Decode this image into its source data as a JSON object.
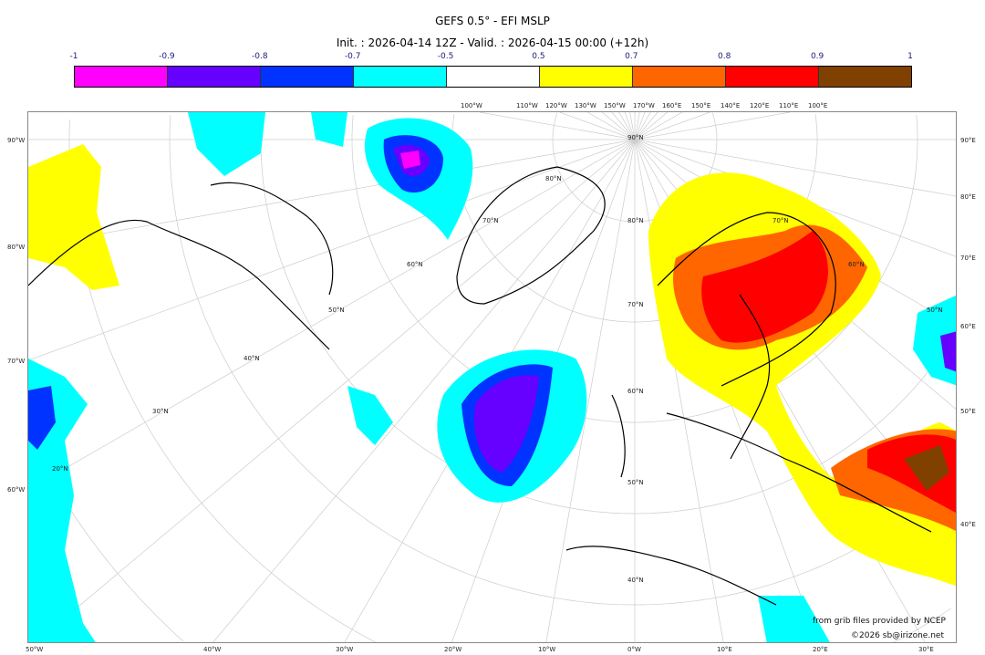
{
  "title": "GEFS 0.5° - EFI MSLP",
  "subtitle": "Init. : 2026-04-14 12Z - Valid. : 2026-04-15 00:00 (+12h)",
  "colorbar": {
    "ticks": [
      "-1",
      "-0.9",
      "-0.8",
      "-0.7",
      "-0.5",
      "0.5",
      "0.7",
      "0.8",
      "0.9",
      "1"
    ],
    "colors": [
      "#ff00ff",
      "#6600ff",
      "#0033ff",
      "#00ffff",
      "#ffffff",
      "#ffff00",
      "#ff6600",
      "#ff0000",
      "#804000"
    ]
  },
  "axes": {
    "bottom": [
      "50°W",
      "40°W",
      "30°W",
      "20°W",
      "10°W",
      "0°W",
      "10°E",
      "20°E",
      "30°E"
    ],
    "left": [
      "90°W",
      "80°W",
      "70°W",
      "60°W"
    ],
    "right": [
      "90°E",
      "80°E",
      "70°E",
      "60°E",
      "50°E",
      "40°E"
    ],
    "top": [
      "100°W",
      "110°W",
      "120°W",
      "130°W",
      "150°W",
      "170°W",
      "160°E",
      "150°E",
      "140°E",
      "120°E",
      "110°E",
      "100°E"
    ],
    "lat": [
      "90°N",
      "80°N",
      "70°N",
      "60°N",
      "50°N",
      "40°N",
      "80°N",
      "70°N",
      "60°N",
      "50°N",
      "40°N",
      "30°N",
      "20°N",
      "70°N",
      "60°N",
      "50°N"
    ]
  },
  "credits": {
    "source": "from grib files provided by NCEP",
    "copyright": "©2026 sb@irizone.net"
  }
}
